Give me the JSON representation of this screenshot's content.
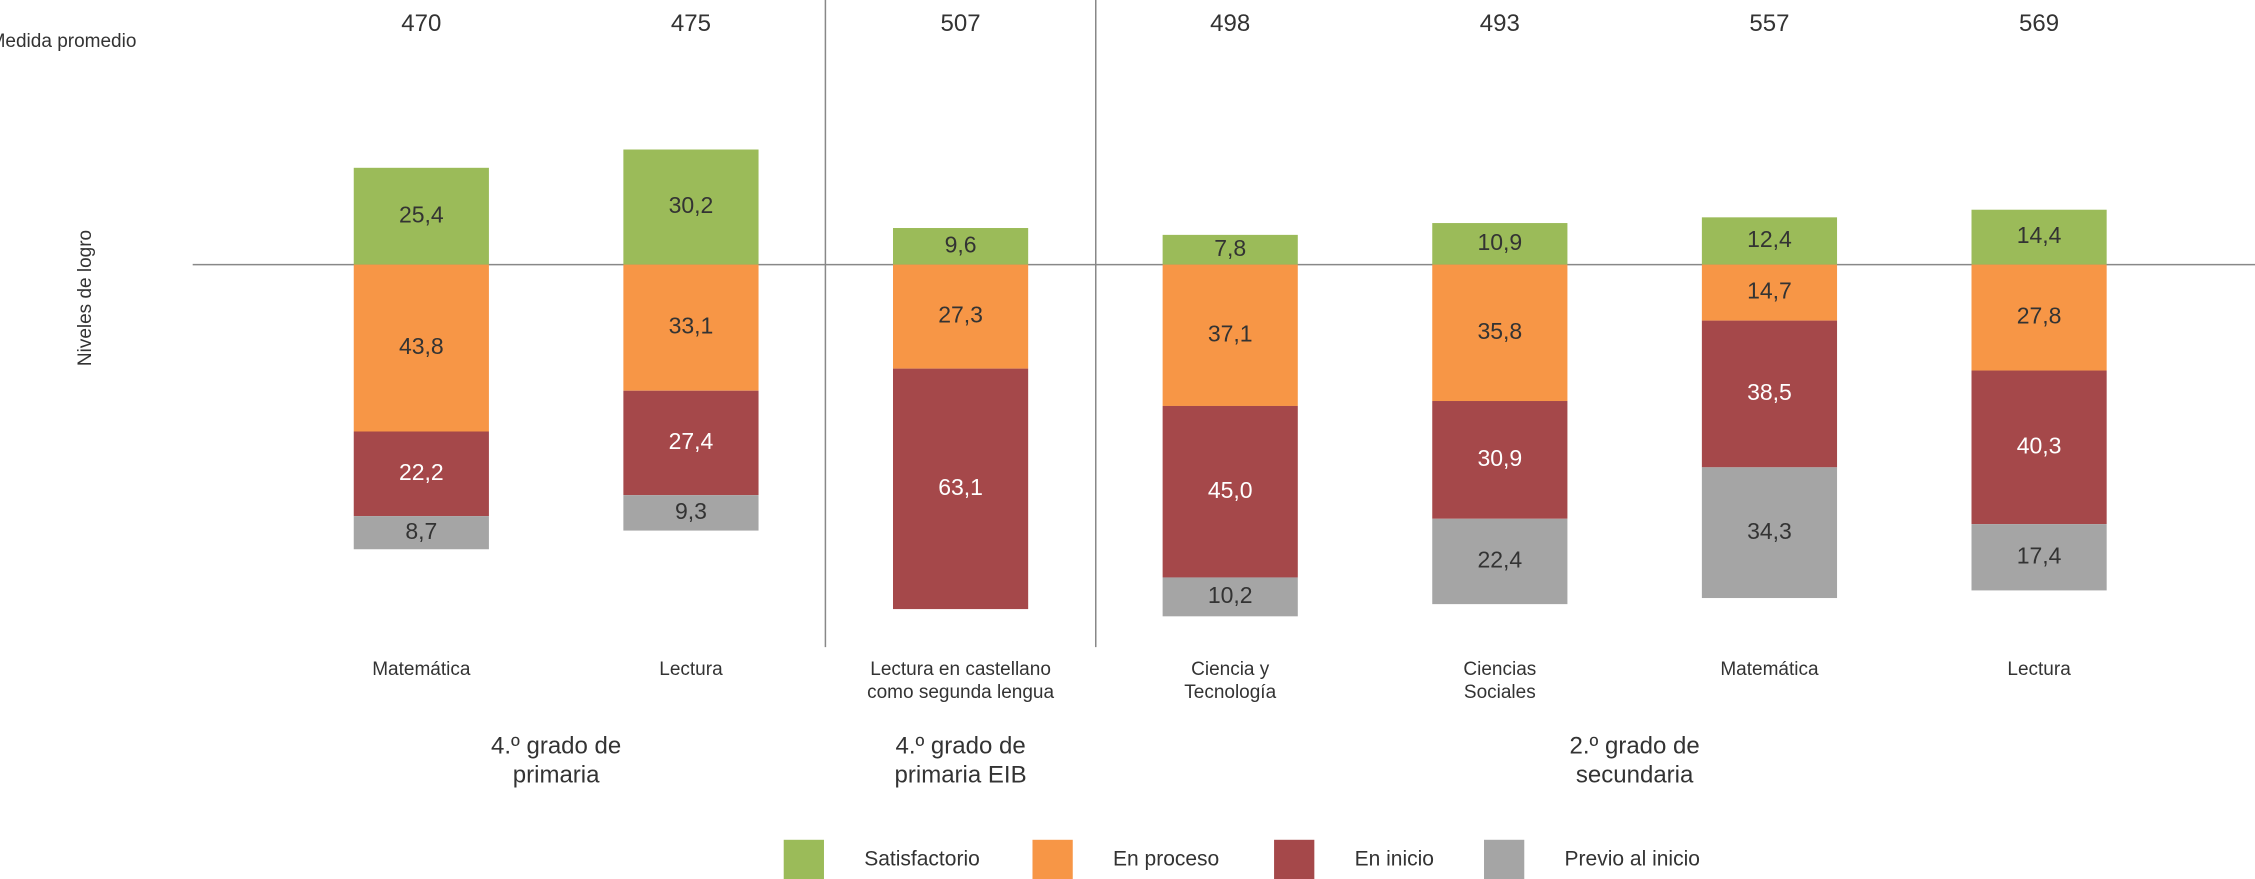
{
  "chart_data": {
    "type": "diverging_stacked_bar",
    "mean_label": "Medida promedio",
    "y_label": "Niveles de logro",
    "categories": [
      "Matemática",
      "Lectura",
      "Lectura en castellano\ncomo segunda lengua",
      "Ciencia y\nTecnología",
      "Ciencias\nSociales",
      "Matemática",
      "Lectura"
    ],
    "means": [
      470,
      475,
      507,
      498,
      493,
      557,
      569
    ],
    "groups": [
      {
        "label": "4.º grado de\nprimaria",
        "categories": [
          0,
          1
        ]
      },
      {
        "label": "4.º grado de\nprimaria EIB",
        "categories": [
          2
        ]
      },
      {
        "label": "2.º grado de\nsecundaria",
        "categories": [
          3,
          4,
          5,
          6
        ]
      }
    ],
    "series": [
      {
        "name": "Satisfactorio",
        "color": "#9bbb59",
        "label_color": "#333333",
        "direction": "up",
        "values": [
          25.4,
          30.2,
          9.6,
          7.8,
          10.9,
          12.4,
          14.4
        ],
        "value_labels": [
          "25,4",
          "30,2",
          "9,6",
          "7,8",
          "10,9",
          "12,4",
          "14,4"
        ]
      },
      {
        "name": "En proceso",
        "color": "#f79646",
        "label_color": "#333333",
        "direction": "down",
        "values": [
          43.8,
          33.1,
          27.3,
          37.1,
          35.8,
          14.7,
          27.8
        ],
        "value_labels": [
          "43,8",
          "33,1",
          "27,3",
          "37,1",
          "35,8",
          "14,7",
          "27,8"
        ]
      },
      {
        "name": "En inicio",
        "color": "#a5484a",
        "label_color": "#ffffff",
        "direction": "down",
        "values": [
          22.2,
          27.4,
          63.1,
          45.0,
          30.9,
          38.5,
          40.3
        ],
        "value_labels": [
          "22,2",
          "27,4",
          "63,1",
          "45,0",
          "30,9",
          "38,5",
          "40,3"
        ]
      },
      {
        "name": "Previo al inicio",
        "color": "#a5a5a5",
        "label_color": "#333333",
        "direction": "down",
        "values": [
          8.7,
          9.3,
          null,
          10.2,
          22.4,
          34.3,
          17.4
        ],
        "value_labels": [
          "8,7",
          "9,3",
          null,
          "10,2",
          "22,4",
          "34,3",
          "17,4"
        ]
      }
    ]
  }
}
